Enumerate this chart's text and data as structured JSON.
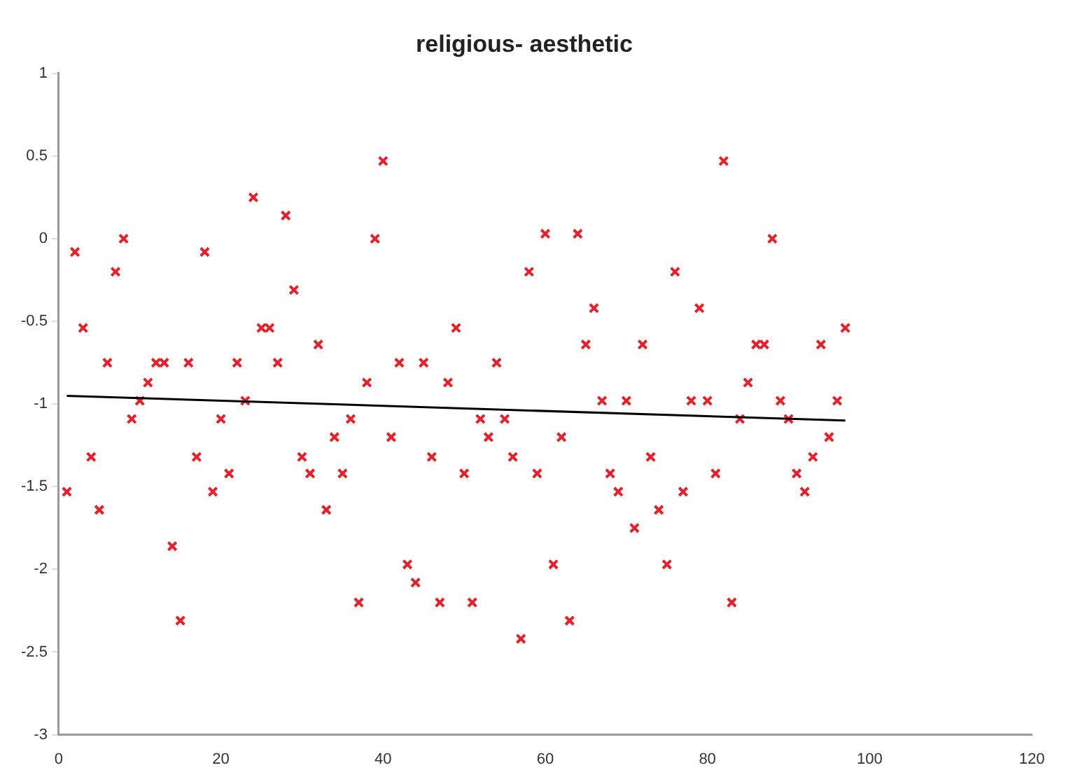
{
  "chart_data": {
    "type": "scatter",
    "title": "religious- aesthetic",
    "grid": false,
    "legend": false,
    "x": [
      1,
      2,
      3,
      4,
      5,
      6,
      7,
      8,
      9,
      10,
      11,
      12,
      13,
      14,
      15,
      16,
      17,
      18,
      19,
      20,
      21,
      22,
      23,
      24,
      25,
      26,
      27,
      28,
      29,
      30,
      31,
      32,
      33,
      34,
      35,
      36,
      37,
      38,
      39,
      40,
      41,
      42,
      43,
      44,
      45,
      46,
      47,
      48,
      49,
      50,
      51,
      52,
      53,
      54,
      55,
      56,
      57,
      58,
      59,
      60,
      61,
      62,
      63,
      64,
      65,
      66,
      67,
      68,
      69,
      70,
      71,
      72,
      73,
      74,
      75,
      76,
      77,
      78,
      79,
      80,
      81,
      82,
      83,
      84,
      85,
      86,
      87,
      88,
      89,
      90,
      91,
      92,
      93,
      94,
      95,
      96,
      97
    ],
    "series": [
      {
        "marker": "cross",
        "color": "#e8202a",
        "values": [
          -1.53,
          -0.08,
          -0.54,
          -1.32,
          -1.64,
          -0.75,
          -0.2,
          0.0,
          -1.09,
          -0.98,
          -0.87,
          -0.75,
          -0.75,
          -1.86,
          -2.31,
          -0.75,
          -1.32,
          -0.08,
          -1.53,
          -1.09,
          -1.42,
          -0.75,
          -0.98,
          0.25,
          -0.54,
          -0.54,
          -0.75,
          0.14,
          -0.31,
          -1.32,
          -1.42,
          -0.64,
          -1.64,
          -1.2,
          -1.42,
          -1.09,
          -2.2,
          -0.87,
          0.0,
          0.47,
          -1.2,
          -0.75,
          -1.97,
          -2.08,
          -0.75,
          -1.32,
          -2.2,
          -0.87,
          -0.54,
          -1.42,
          -2.2,
          -1.09,
          -1.2,
          -0.75,
          -1.09,
          -1.32,
          -2.42,
          -0.2,
          -1.42,
          0.03,
          -1.97,
          -1.2,
          -2.31,
          0.03,
          -0.64,
          -0.42,
          -0.98,
          -1.42,
          -1.53,
          -0.98,
          -1.75,
          -0.64,
          -1.32,
          -1.64,
          -1.97,
          -0.2,
          -1.53,
          -0.98,
          -0.42,
          -0.98,
          -1.42,
          0.47,
          -2.2,
          -1.09,
          -0.87,
          -0.64,
          -0.64,
          0.0,
          -0.98,
          -1.09,
          -1.42,
          -1.53,
          -1.32,
          -0.64,
          -1.2,
          -0.98,
          -0.54
        ]
      },
      {
        "type": "line",
        "color": "#000000",
        "x": [
          1,
          97
        ],
        "values": [
          -0.95,
          -1.1
        ]
      }
    ],
    "xlim": [
      0,
      120
    ],
    "xticks": [
      0,
      20,
      40,
      60,
      80,
      100,
      120
    ],
    "ylim": [
      -3,
      1
    ],
    "yticks": [
      -3,
      -2.5,
      -2,
      -1.5,
      -1,
      -0.5,
      0,
      0.5,
      1
    ]
  }
}
